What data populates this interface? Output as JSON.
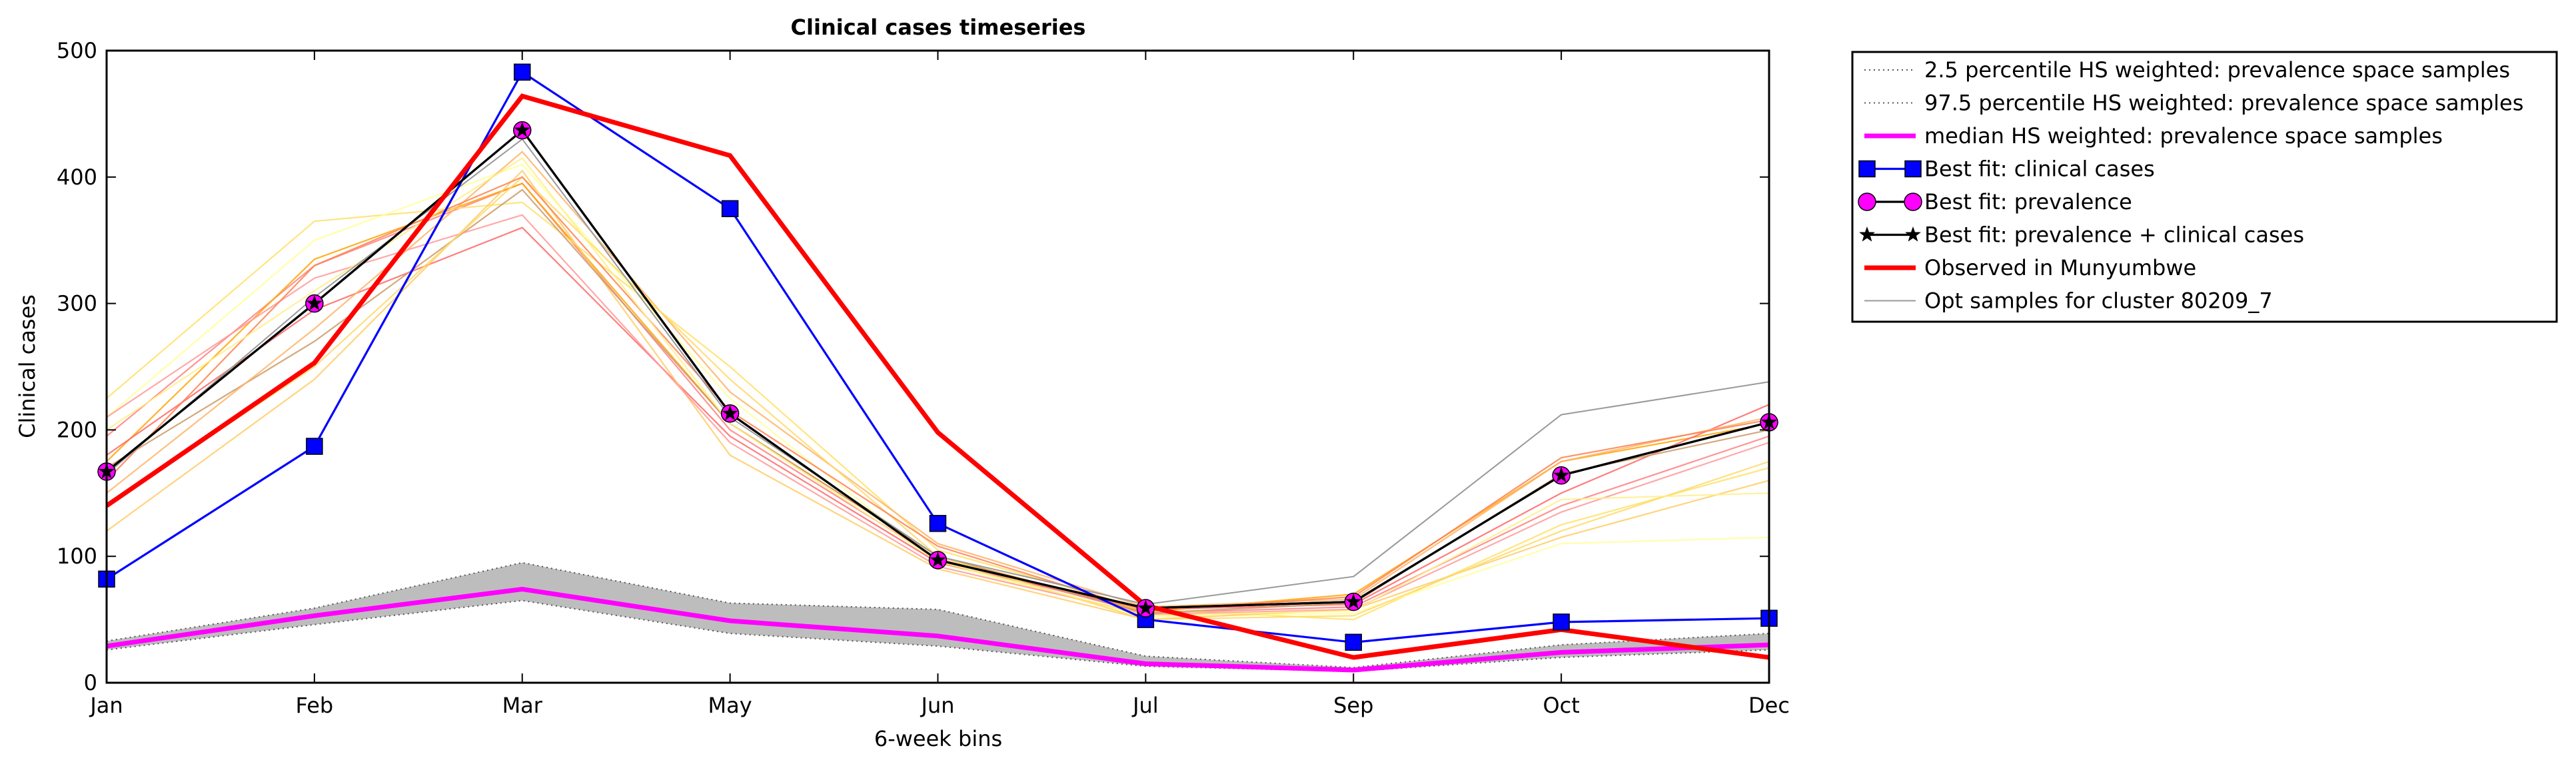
{
  "chart_data": {
    "type": "line",
    "title": "Clinical cases timeseries",
    "xlabel": "6-week bins",
    "ylabel": "Clinical cases",
    "categories": [
      "Jan",
      "Feb",
      "Mar",
      "May",
      "Jun",
      "Jul",
      "Sep",
      "Oct",
      "Dec"
    ],
    "ylim": [
      0,
      500
    ],
    "yticks": [
      0,
      100,
      200,
      300,
      400,
      500
    ],
    "grid": false,
    "legend_position": "outside-top-right",
    "band": {
      "fill": "#bdbdbd",
      "lower": [
        26,
        46,
        65,
        39,
        29,
        13,
        9,
        20,
        26
      ],
      "upper": [
        33,
        59,
        95,
        63,
        58,
        21,
        12,
        30,
        39
      ]
    },
    "series": [
      {
        "name": "2.5 percentile HS weighted: prevalence space samples",
        "style": "dotted",
        "color": "#555555",
        "values": [
          26,
          46,
          65,
          39,
          29,
          13,
          9,
          20,
          26
        ]
      },
      {
        "name": "97.5 percentile HS weighted: prevalence space samples",
        "style": "dotted",
        "color": "#555555",
        "values": [
          33,
          59,
          95,
          63,
          58,
          21,
          12,
          30,
          39
        ]
      },
      {
        "name": "median HS weighted: prevalence space samples",
        "style": "solid",
        "color": "#ff00ff",
        "values": [
          29,
          53,
          74,
          49,
          37,
          15,
          10,
          24,
          30
        ]
      },
      {
        "name": "Best fit: clinical cases",
        "style": "solid",
        "color": "#0000ff",
        "marker": "square",
        "values": [
          82,
          187,
          483,
          375,
          126,
          50,
          32,
          48,
          51
        ]
      },
      {
        "name": "Best fit: prevalence",
        "style": "solid",
        "color": "#000000",
        "marker": "circle",
        "marker_fill": "#ff00ff",
        "values": [
          167,
          300,
          437,
          213,
          97,
          59,
          64,
          164,
          206
        ]
      },
      {
        "name": "Best fit: prevalence + clinical cases",
        "style": "solid",
        "color": "#000000",
        "marker": "star",
        "values": [
          167,
          300,
          437,
          213,
          97,
          59,
          64,
          164,
          206
        ]
      },
      {
        "name": "Observed in Munyumbwe",
        "style": "solid",
        "color": "#ff0000",
        "values": [
          140,
          253,
          464,
          417,
          198,
          61,
          20,
          42,
          20
        ]
      },
      {
        "name": "Opt samples for cluster 80209_7",
        "style": "solid",
        "color": "#999999",
        "values": [
          165,
          305,
          430,
          210,
          100,
          62,
          84,
          212,
          238
        ]
      }
    ],
    "samples": [
      {
        "color": "#ff8080",
        "values": [
          195,
          330,
          395,
          200,
          98,
          55,
          60,
          140,
          195
        ]
      },
      {
        "color": "#ffa500",
        "values": [
          175,
          335,
          395,
          205,
          100,
          56,
          70,
          175,
          205
        ]
      },
      {
        "color": "#ffe066",
        "values": [
          225,
          365,
          380,
          250,
          105,
          58,
          50,
          125,
          170
        ]
      },
      {
        "color": "#ffff99",
        "values": [
          210,
          350,
          410,
          225,
          95,
          52,
          55,
          110,
          115
        ]
      },
      {
        "color": "#ff6666",
        "values": [
          180,
          295,
          360,
          195,
          95,
          58,
          62,
          150,
          220
        ]
      },
      {
        "color": "#ffcc66",
        "values": [
          120,
          240,
          405,
          180,
          90,
          50,
          58,
          115,
          160
        ]
      },
      {
        "color": "#cc9966",
        "values": [
          170,
          270,
          390,
          205,
          100,
          55,
          63,
          165,
          200
        ]
      },
      {
        "color": "#ff9999",
        "values": [
          210,
          320,
          370,
          190,
          92,
          54,
          58,
          135,
          190
        ]
      },
      {
        "color": "#ffb366",
        "values": [
          150,
          280,
          420,
          230,
          110,
          60,
          66,
          175,
          210
        ]
      },
      {
        "color": "#ffd966",
        "values": [
          140,
          250,
          400,
          240,
          100,
          50,
          53,
          120,
          175
        ]
      },
      {
        "color": "#ff7f50",
        "values": [
          160,
          330,
          400,
          215,
          108,
          57,
          68,
          178,
          208
        ]
      },
      {
        "color": "#ffee88",
        "values": [
          200,
          310,
          415,
          205,
          96,
          53,
          57,
          145,
          150
        ]
      }
    ]
  }
}
